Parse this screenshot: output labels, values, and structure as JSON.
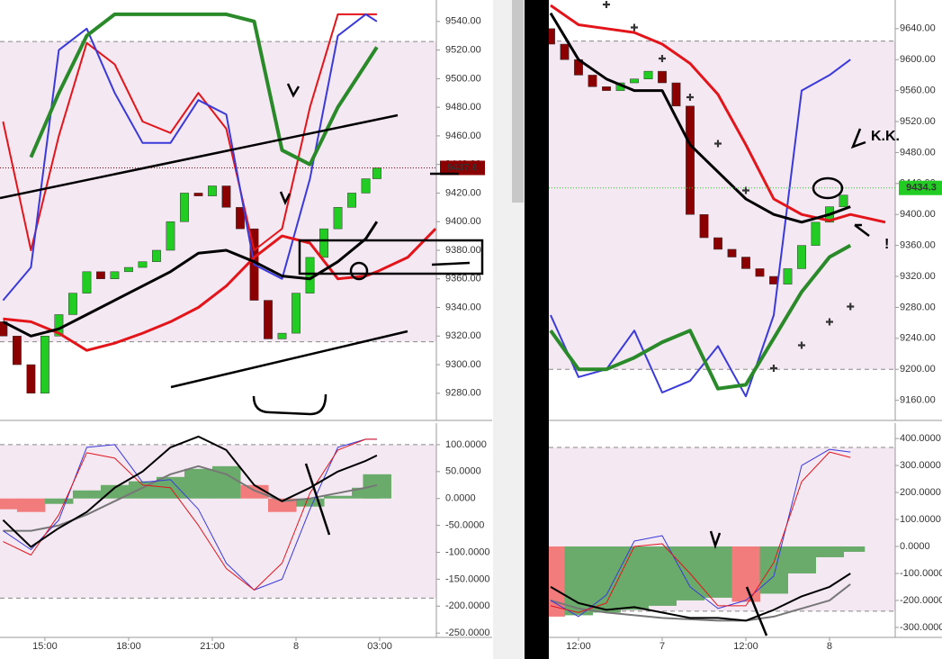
{
  "chart_data": [
    {
      "type": "candlestick",
      "xlim": [
        -1.61,
        14.03
      ],
      "ylim": [
        9261,
        9555
      ],
      "yticks": [
        {
          "value": 9280,
          "label": "9280.00"
        },
        {
          "value": 9300,
          "label": "9300.00"
        },
        {
          "value": 9320,
          "label": "9320.00"
        },
        {
          "value": 9340,
          "label": "9340.00"
        },
        {
          "value": 9360,
          "label": "9360.00"
        },
        {
          "value": 9380,
          "label": "9380.00"
        },
        {
          "value": 9400,
          "label": "9400.00"
        },
        {
          "value": 9420,
          "label": "9420.00"
        },
        {
          "value": 9440,
          "label": "9440.00"
        },
        {
          "value": 9460,
          "label": "9460.00"
        },
        {
          "value": 9480,
          "label": "9480.00"
        },
        {
          "value": 9500,
          "label": "9500.00"
        },
        {
          "value": 9520,
          "label": "9520.00"
        },
        {
          "value": 9540,
          "label": "9540.00"
        }
      ],
      "hlines": [
        9526,
        9316
      ],
      "last_price": 9437.6,
      "last_price_color": "#8b0000",
      "candles": {
        "x": [
          -1.5,
          -1,
          -0.5,
          0,
          0.5,
          1,
          1.5,
          2,
          2.5,
          3,
          3.5,
          4,
          4.5,
          5,
          5.5,
          6,
          6.5,
          7,
          7.5,
          8,
          8.5,
          9,
          9.5,
          10,
          10.5,
          11,
          11.5,
          11.9
        ],
        "open": [
          9330,
          9320,
          9300,
          9280,
          9320,
          9335,
          9350,
          9365,
          9360,
          9365,
          9368,
          9372,
          9380,
          9400,
          9420,
          9418,
          9425,
          9410,
          9395,
          9345,
          9318,
          9322,
          9350,
          9375,
          9395,
          9410,
          9420,
          9430
        ],
        "close": [
          9320,
          9300,
          9280,
          9320,
          9335,
          9350,
          9365,
          9360,
          9365,
          9368,
          9372,
          9380,
          9400,
          9420,
          9418,
          9425,
          9410,
          9395,
          9345,
          9318,
          9322,
          9350,
          9375,
          9395,
          9410,
          9420,
          9430,
          9437.6
        ]
      },
      "x": [
        -1.5,
        -0.5,
        0.5,
        1.5,
        2.5,
        3.5,
        4.5,
        5.5,
        6.5,
        7.5,
        8.5,
        9.5,
        10.5,
        11.5,
        11.9,
        13,
        14
      ],
      "series": [
        {
          "color": "#e3151a",
          "width": 2,
          "values": [
            9470,
            9380,
            9460,
            9525,
            9510,
            9470,
            9462,
            9490,
            9465,
            9380,
            9395,
            9480,
            9545,
            9545,
            9545,
            null,
            null
          ]
        },
        {
          "color": "#3a3adb",
          "width": 2,
          "values": [
            9345,
            9368,
            9520,
            9535,
            9490,
            9455,
            9455,
            9485,
            9475,
            9370,
            9360,
            9430,
            9530,
            9545,
            9540,
            null,
            null
          ]
        },
        {
          "color": "#2a8a2a",
          "width": 4,
          "values": [
            null,
            9445,
            9490,
            9530,
            9545,
            9545,
            9545,
            9545,
            9545,
            9540,
            9450,
            9440,
            9480,
            9510,
            9522,
            null,
            null
          ]
        },
        {
          "color": "#e3151a",
          "width": 3,
          "values": [
            9332,
            9330,
            9322,
            9310,
            9315,
            9322,
            9330,
            9340,
            9355,
            9375,
            9390,
            9385,
            9360,
            9362,
            9365,
            9375,
            9395
          ]
        },
        {
          "color": "#000000",
          "width": 3,
          "values": [
            9330,
            9320,
            9325,
            9335,
            9345,
            9355,
            9365,
            9378,
            9380,
            9372,
            9362,
            9360,
            9372,
            9388,
            9400,
            null,
            null
          ]
        }
      ]
    },
    {
      "type": "line",
      "xlim": [
        -1.61,
        14.03
      ],
      "ylim": [
        -258,
        140
      ],
      "yticks": [
        {
          "value": 100,
          "label": "100.0000"
        },
        {
          "value": 50,
          "label": "50.0000"
        },
        {
          "value": 0,
          "label": "0.0000"
        },
        {
          "value": -50,
          "label": "-50.0000"
        },
        {
          "value": -100,
          "label": "-100.0000"
        },
        {
          "value": -150,
          "label": "-150.0000"
        },
        {
          "value": -200,
          "label": "-200.0000"
        },
        {
          "value": -250,
          "label": "-250.0000"
        }
      ],
      "xticks": [
        {
          "value": 0,
          "label": "15:00"
        },
        {
          "value": 3,
          "label": "18:00"
        },
        {
          "value": 6,
          "label": "21:00"
        },
        {
          "value": 9,
          "label": "8"
        },
        {
          "value": 12,
          "label": "03:00"
        }
      ],
      "hlines": [
        100,
        -185
      ],
      "x": [
        -1.5,
        -0.5,
        0.5,
        1.5,
        2.5,
        3.5,
        4.5,
        5.5,
        6.5,
        7.5,
        8.5,
        9.5,
        10.5,
        11.5,
        11.9
      ],
      "histogram": {
        "colors": [
          "#6aaa6a",
          "#f27b7b"
        ],
        "values": [
          -20,
          -25,
          -10,
          15,
          25,
          32,
          40,
          55,
          60,
          25,
          -25,
          -15,
          5,
          20,
          45
        ]
      },
      "series": [
        {
          "color": "#777777",
          "width": 2,
          "values": [
            -60,
            -60,
            -50,
            -30,
            -5,
            20,
            45,
            60,
            45,
            15,
            -5,
            0,
            10,
            20,
            25
          ]
        },
        {
          "color": "#3a3adb",
          "width": 1,
          "values": [
            -60,
            -95,
            -40,
            95,
            100,
            30,
            35,
            -20,
            -120,
            -170,
            -150,
            -20,
            95,
            110,
            110
          ]
        },
        {
          "color": "#e3151a",
          "width": 1,
          "values": [
            -80,
            -105,
            -30,
            85,
            75,
            25,
            20,
            -50,
            -130,
            -170,
            -120,
            10,
            90,
            110,
            110
          ]
        },
        {
          "color": "#000000",
          "width": 2,
          "values": [
            -40,
            -90,
            -55,
            -25,
            20,
            50,
            95,
            115,
            90,
            25,
            -5,
            20,
            50,
            70,
            80
          ]
        }
      ]
    },
    {
      "type": "candlestick",
      "xlim": [
        -4.26,
        45.42
      ],
      "ylim": [
        9134,
        9677
      ],
      "yticks": [
        {
          "value": 9160,
          "label": "9160.00"
        },
        {
          "value": 9200,
          "label": "9200.00"
        },
        {
          "value": 9240,
          "label": "9240.00"
        },
        {
          "value": 9280,
          "label": "9280.00"
        },
        {
          "value": 9320,
          "label": "9320.00"
        },
        {
          "value": 9360,
          "label": "9360.00"
        },
        {
          "value": 9400,
          "label": "9400.00"
        },
        {
          "value": 9440,
          "label": "9440.00"
        },
        {
          "value": 9480,
          "label": "9480.00"
        },
        {
          "value": 9520,
          "label": "9520.00"
        },
        {
          "value": 9560,
          "label": "9560.00"
        },
        {
          "value": 9600,
          "label": "9600.00"
        },
        {
          "value": 9640,
          "label": "9640.00"
        }
      ],
      "hlines": [
        9624,
        9200
      ],
      "last_price": 9434.3,
      "last_price_color": "#22cc22",
      "candles": {
        "x": [
          -4,
          -2,
          0,
          2,
          4,
          6,
          8,
          10,
          12,
          14,
          16,
          18,
          20,
          22,
          24,
          26,
          28,
          30,
          32,
          34,
          36,
          38
        ],
        "open": [
          9640,
          9620,
          9600,
          9580,
          9565,
          9560,
          9570,
          9575,
          9585,
          9570,
          9540,
          9400,
          9370,
          9355,
          9345,
          9330,
          9320,
          9310,
          9330,
          9360,
          9390,
          9410
        ],
        "close": [
          9620,
          9600,
          9580,
          9565,
          9560,
          9570,
          9575,
          9585,
          9570,
          9540,
          9400,
          9370,
          9355,
          9345,
          9330,
          9320,
          9310,
          9330,
          9360,
          9390,
          9410,
          9425
        ]
      },
      "x": [
        -4,
        0,
        4,
        8,
        12,
        16,
        20,
        24,
        28,
        32,
        36,
        39,
        44
      ],
      "series": [
        {
          "color": "#3a3adb",
          "width": 2,
          "values": [
            9270,
            9190,
            9200,
            9250,
            9170,
            9185,
            9230,
            9165,
            9270,
            9560,
            9580,
            9600,
            null
          ]
        },
        {
          "color": "#2a8a2a",
          "width": 4,
          "values": [
            9250,
            9200,
            9200,
            9215,
            9235,
            9250,
            9175,
            9180,
            9240,
            9300,
            9345,
            9360,
            null
          ]
        },
        {
          "color": "#e3151a",
          "width": 3,
          "values": [
            9670,
            9645,
            9640,
            9635,
            9620,
            9595,
            9555,
            9490,
            9420,
            9400,
            9392,
            9400,
            9390
          ]
        },
        {
          "color": "#000000",
          "width": 3,
          "values": [
            9660,
            9600,
            9575,
            9560,
            9560,
            9490,
            9455,
            9420,
            9400,
            9390,
            9400,
            9410,
            null
          ]
        },
        {
          "color": "#2b2bd8",
          "style": "dots",
          "values": [
            null,
            null,
            9670,
            9640,
            9600,
            9550,
            9490,
            9430,
            9200,
            9230,
            9260,
            9280,
            null
          ]
        }
      ]
    },
    {
      "type": "line",
      "xlim": [
        -4.26,
        45.42
      ],
      "ylim": [
        -337,
        457
      ],
      "yticks": [
        {
          "value": 400,
          "label": "400.0000"
        },
        {
          "value": 300,
          "label": "300.0000"
        },
        {
          "value": 200,
          "label": "200.0000"
        },
        {
          "value": 100,
          "label": "100.0000"
        },
        {
          "value": 0,
          "label": "0.0000"
        },
        {
          "value": -100,
          "label": "-100.0000"
        },
        {
          "value": -200,
          "label": "-200.0000"
        },
        {
          "value": -300,
          "label": "-300.0000"
        }
      ],
      "xticks": [
        {
          "value": 0,
          "label": "12:00"
        },
        {
          "value": 12,
          "label": "7"
        },
        {
          "value": 24,
          "label": "12:00"
        },
        {
          "value": 36,
          "label": "8"
        }
      ],
      "hlines": [
        367,
        -240
      ],
      "x": [
        -4,
        0,
        4,
        8,
        12,
        16,
        20,
        24,
        28,
        32,
        36,
        39
      ],
      "histogram": {
        "colors": [
          "#6aaa6a",
          "#f27b7b"
        ],
        "values": [
          -260,
          -255,
          -245,
          -235,
          -220,
          -200,
          -190,
          -205,
          -175,
          -100,
          -40,
          -20
        ]
      },
      "series": [
        {
          "color": "#777777",
          "width": 2,
          "values": [
            -200,
            -230,
            -245,
            -255,
            -265,
            -270,
            -275,
            -275,
            -260,
            -230,
            -200,
            -140
          ]
        },
        {
          "color": "#3a3adb",
          "width": 1,
          "values": [
            -200,
            -260,
            -180,
            20,
            40,
            -150,
            -230,
            -200,
            -110,
            300,
            360,
            350
          ]
        },
        {
          "color": "#e3151a",
          "width": 1,
          "values": [
            -220,
            -245,
            -210,
            0,
            10,
            -100,
            -220,
            -220,
            -60,
            240,
            350,
            330
          ]
        },
        {
          "color": "#000000",
          "width": 2,
          "values": [
            -150,
            -210,
            -235,
            -225,
            -245,
            -265,
            -265,
            -275,
            -235,
            -185,
            -150,
            -100
          ]
        }
      ]
    }
  ],
  "annotations": [
    "K.K.",
    "!"
  ]
}
